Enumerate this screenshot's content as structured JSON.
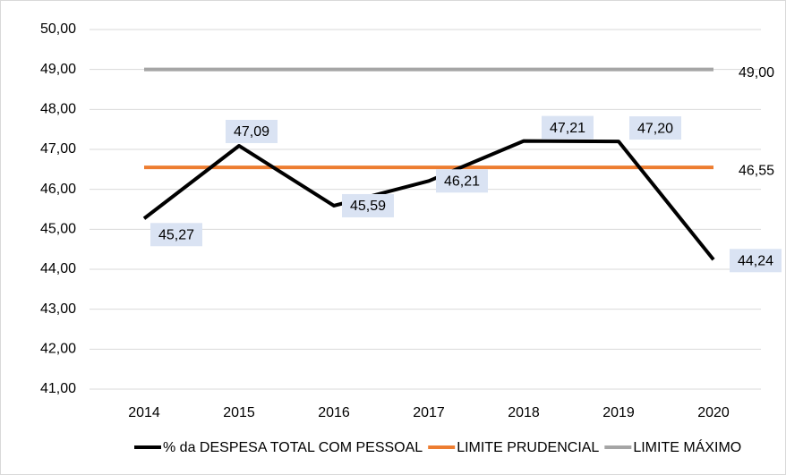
{
  "chart_data": {
    "type": "line",
    "categories": [
      "2014",
      "2015",
      "2016",
      "2017",
      "2018",
      "2019",
      "2020"
    ],
    "series": [
      {
        "name": "% da DESPESA TOTAL COM PESSOAL",
        "color": "#000000",
        "values": [
          45.27,
          47.09,
          45.59,
          46.21,
          47.21,
          47.2,
          44.24
        ],
        "value_labels": [
          "45,27",
          "47,09",
          "45,59",
          "46,21",
          "47,21",
          "47,20",
          "44,24"
        ]
      },
      {
        "name": "LIMITE PRUDENCIAL",
        "color": "#ed7d31",
        "values": [
          46.55,
          46.55,
          46.55,
          46.55,
          46.55,
          46.55,
          46.55
        ],
        "value_labels": [
          null,
          null,
          null,
          null,
          null,
          null,
          "46,55"
        ]
      },
      {
        "name": "LIMITE MÁXIMO",
        "color": "#a5a5a5",
        "values": [
          49.0,
          49.0,
          49.0,
          49.0,
          49.0,
          49.0,
          49.0
        ],
        "value_labels": [
          null,
          null,
          null,
          null,
          null,
          null,
          "49,00"
        ]
      }
    ],
    "ylim": [
      41,
      50
    ],
    "yticks": [
      {
        "value": 41,
        "label": "41,00"
      },
      {
        "value": 42,
        "label": "42,00"
      },
      {
        "value": 43,
        "label": "43,00"
      },
      {
        "value": 44,
        "label": "44,00"
      },
      {
        "value": 45,
        "label": "45,00"
      },
      {
        "value": 46,
        "label": "46,00"
      },
      {
        "value": 47,
        "label": "47,00"
      },
      {
        "value": 48,
        "label": "48,00"
      },
      {
        "value": 49,
        "label": "49,00"
      },
      {
        "value": 50,
        "label": "50,00"
      }
    ],
    "grid": true,
    "legend": "bottom"
  }
}
